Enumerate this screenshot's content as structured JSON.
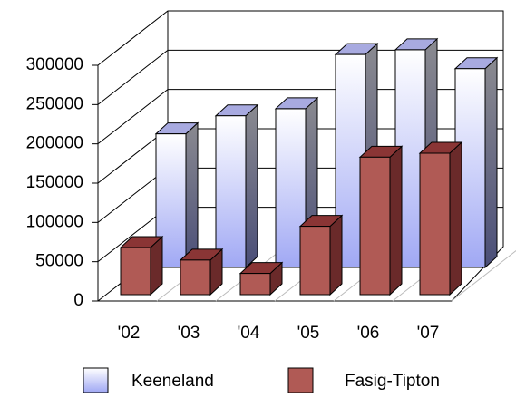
{
  "chart_data": {
    "type": "bar3d",
    "categories": [
      "'02",
      "'03",
      "'04",
      "'05",
      "'06",
      "'07"
    ],
    "series": [
      {
        "name": "Keeneland",
        "color": "#aab0f0",
        "values": [
          170000,
          193000,
          202000,
          271000,
          277000,
          253000
        ]
      },
      {
        "name": "Fasig-Tipton",
        "color": "#b05a55",
        "values": [
          60000,
          44000,
          27000,
          87000,
          175000,
          180000
        ]
      }
    ],
    "ylim": [
      0,
      300000
    ],
    "yticks": [
      0,
      50000,
      100000,
      150000,
      200000,
      250000,
      300000
    ],
    "grid": true
  }
}
